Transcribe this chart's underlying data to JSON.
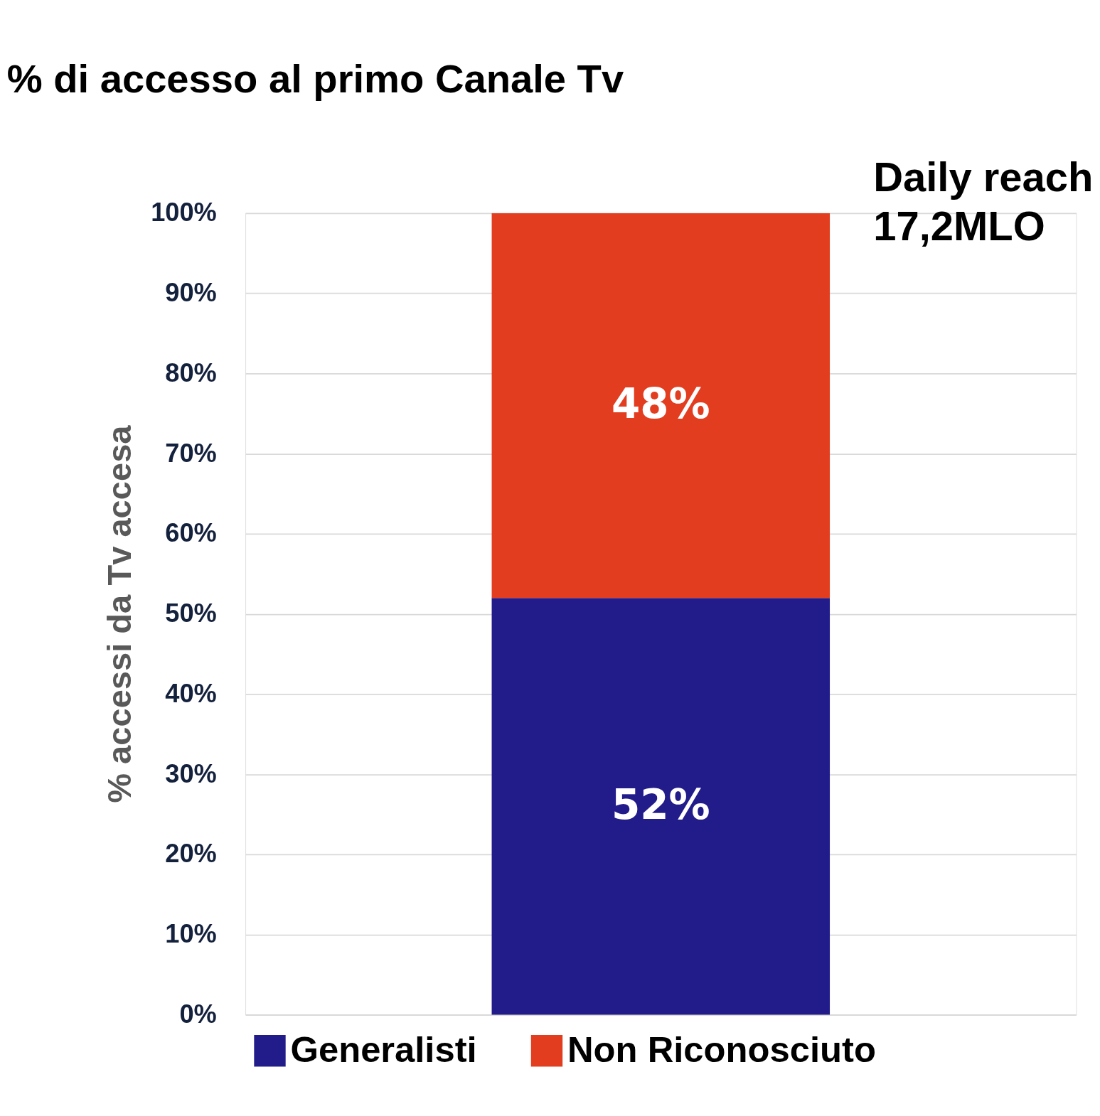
{
  "chart_data": {
    "type": "bar",
    "title": "% di accesso al primo Canale Tv",
    "ylabel": "% accessi da Tv accesa",
    "categories": [
      null
    ],
    "series": [
      {
        "name": "Generalisti",
        "color": "#221c8b",
        "values": [
          52
        ],
        "value_labels": [
          "52%"
        ]
      },
      {
        "name": "Non Riconosciuto",
        "color": "#e33d1f",
        "values": [
          48
        ],
        "value_labels": [
          "48%"
        ]
      }
    ],
    "stacked": true,
    "ylim": [
      0,
      100
    ],
    "yticks": [
      {
        "value": 0,
        "label": "0%"
      },
      {
        "value": 10,
        "label": "10%"
      },
      {
        "value": 20,
        "label": "20%"
      },
      {
        "value": 30,
        "label": "30%"
      },
      {
        "value": 40,
        "label": "40%"
      },
      {
        "value": 50,
        "label": "50%"
      },
      {
        "value": 60,
        "label": "60%"
      },
      {
        "value": 70,
        "label": "70%"
      },
      {
        "value": 80,
        "label": "80%"
      },
      {
        "value": 90,
        "label": "90%"
      },
      {
        "value": 100,
        "label": "100%"
      }
    ],
    "annotations": [
      "Daily reach\n17,2MLO"
    ],
    "grid": "y",
    "legend": "bottom"
  }
}
